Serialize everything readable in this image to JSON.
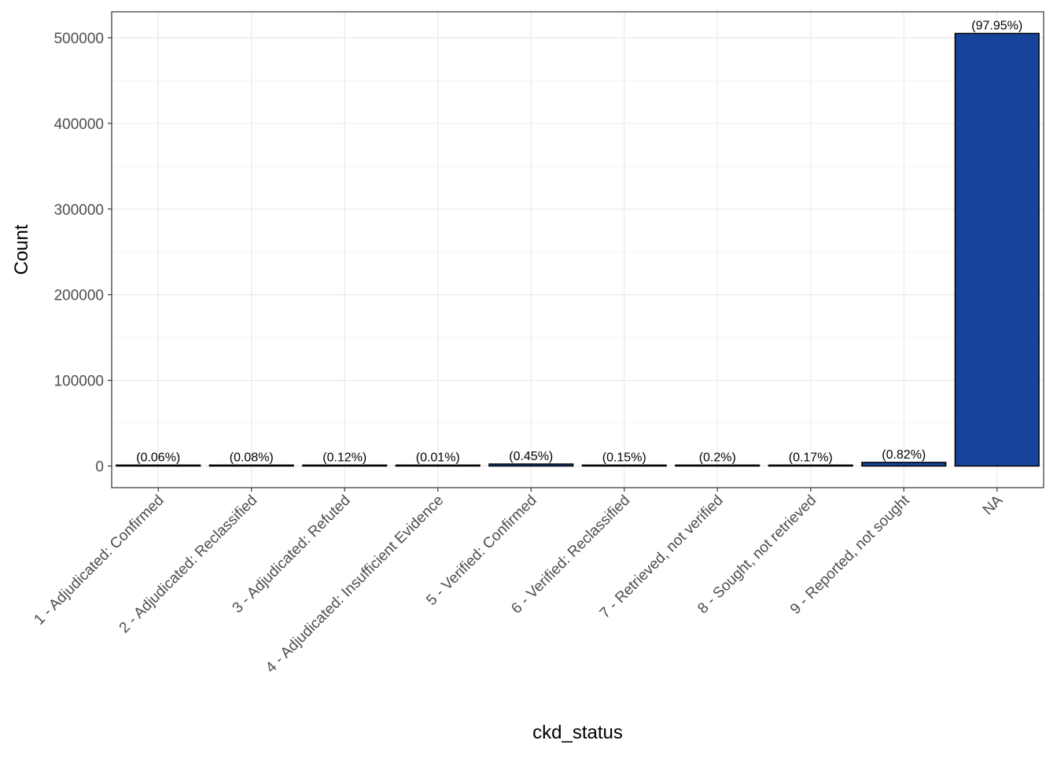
{
  "chart_data": {
    "type": "bar",
    "title": "",
    "xlabel": "ckd_status",
    "ylabel": "Count",
    "categories": [
      "1 - Adjudicated: Confirmed",
      "2 - Adjudicated: Reclassified",
      "3 - Adjudicated: Refuted",
      "4 - Adjudicated: Insufficient Evidence",
      "5 - Verified: Confirmed",
      "6 - Verified: Reclassified",
      "7 - Retrieved, not verified",
      "8 - Sought, not retrieved",
      "9 - Reported, not sought",
      "NA"
    ],
    "values": [
      310,
      410,
      620,
      50,
      2320,
      775,
      1030,
      880,
      4230,
      505000
    ],
    "labels": [
      "(0.06%)",
      "(0.08%)",
      "(0.12%)",
      "(0.01%)",
      "(0.45%)",
      "(0.15%)",
      "(0.2%)",
      "(0.17%)",
      "(0.82%)",
      "(97.95%)"
    ],
    "yticks": [
      0,
      100000,
      200000,
      300000,
      400000,
      500000
    ],
    "ylim": [
      -25250,
      530250
    ],
    "grid": true,
    "legend": "none",
    "colors": {
      "bar_fill": "#17439a",
      "bar_stroke": "#000000",
      "grid_major": "#ebebeb",
      "grid_minor": "#f5f5f5",
      "panel_border": "#333333"
    }
  }
}
